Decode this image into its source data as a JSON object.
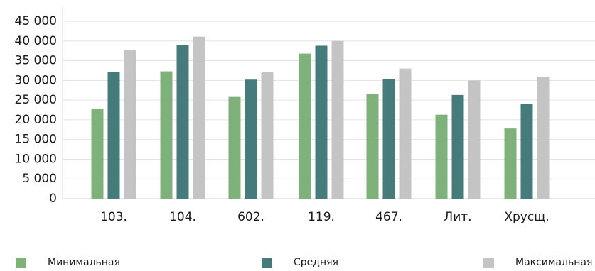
{
  "chart_data": {
    "type": "bar",
    "categories": [
      "103.",
      "104.",
      "602.",
      "119.",
      "467.",
      "Лит.",
      "Хрусщ."
    ],
    "series": [
      {
        "name": "Минимальная",
        "color": "#7fb27a",
        "values": [
          22800,
          32300,
          25800,
          36800,
          26500,
          21300,
          17800
        ]
      },
      {
        "name": "Средняя",
        "color": "#457b7a",
        "values": [
          32100,
          39000,
          30200,
          38800,
          30400,
          26300,
          24100
        ]
      },
      {
        "name": "Максимальная",
        "color": "#c4c4c4",
        "values": [
          37700,
          41100,
          32100,
          40000,
          33000,
          30000,
          30900
        ]
      }
    ],
    "yticks": [
      "0",
      "5 000",
      "10 000",
      "15 000",
      "20 000",
      "25 000",
      "30 000",
      "35 000",
      "40 000",
      "45 000"
    ],
    "ylim": [
      0,
      45000
    ],
    "grid": true,
    "legend_position": "bottom"
  }
}
